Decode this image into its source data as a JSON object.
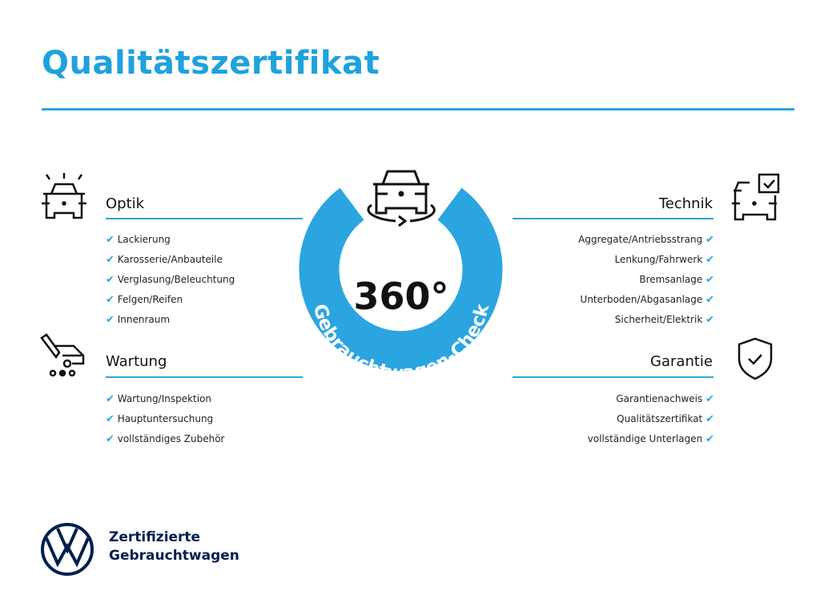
{
  "title": "Qualitätszertifikat",
  "badge": {
    "number": "360°",
    "ring_text": "Gebrauchtwagen-Check"
  },
  "sections": {
    "optik": {
      "title": "Optik",
      "icon": "car-lights-icon",
      "items": [
        "Lackierung",
        "Karosserie/Anbauteile",
        "Verglasung/Beleuchtung",
        "Felgen/Reifen",
        "Innenraum"
      ]
    },
    "wartung": {
      "title": "Wartung",
      "icon": "service-wrench-icon",
      "items": [
        "Wartung/Inspektion",
        "Hauptuntersuchung",
        "vollständiges Zubehör"
      ]
    },
    "technik": {
      "title": "Technik",
      "icon": "car-checkbox-icon",
      "items": [
        "Aggregate/Antriebsstrang",
        "Lenkung/Fahrwerk",
        "Bremsanlage",
        "Unterboden/Abgasanlage",
        "Sicherheit/Elektrik"
      ]
    },
    "garantie": {
      "title": "Garantie",
      "icon": "shield-check-icon",
      "items": [
        "Garantienachweis",
        "Qualitätszertifikat",
        "vollständige Unterlagen"
      ]
    }
  },
  "check_glyph": "✔",
  "brand": {
    "line1": "Zertifizierte",
    "line2": "Gebrauchtwagen"
  },
  "colors": {
    "accent": "#2aa5e0",
    "title": "#1ea2de",
    "brand": "#001e50"
  }
}
